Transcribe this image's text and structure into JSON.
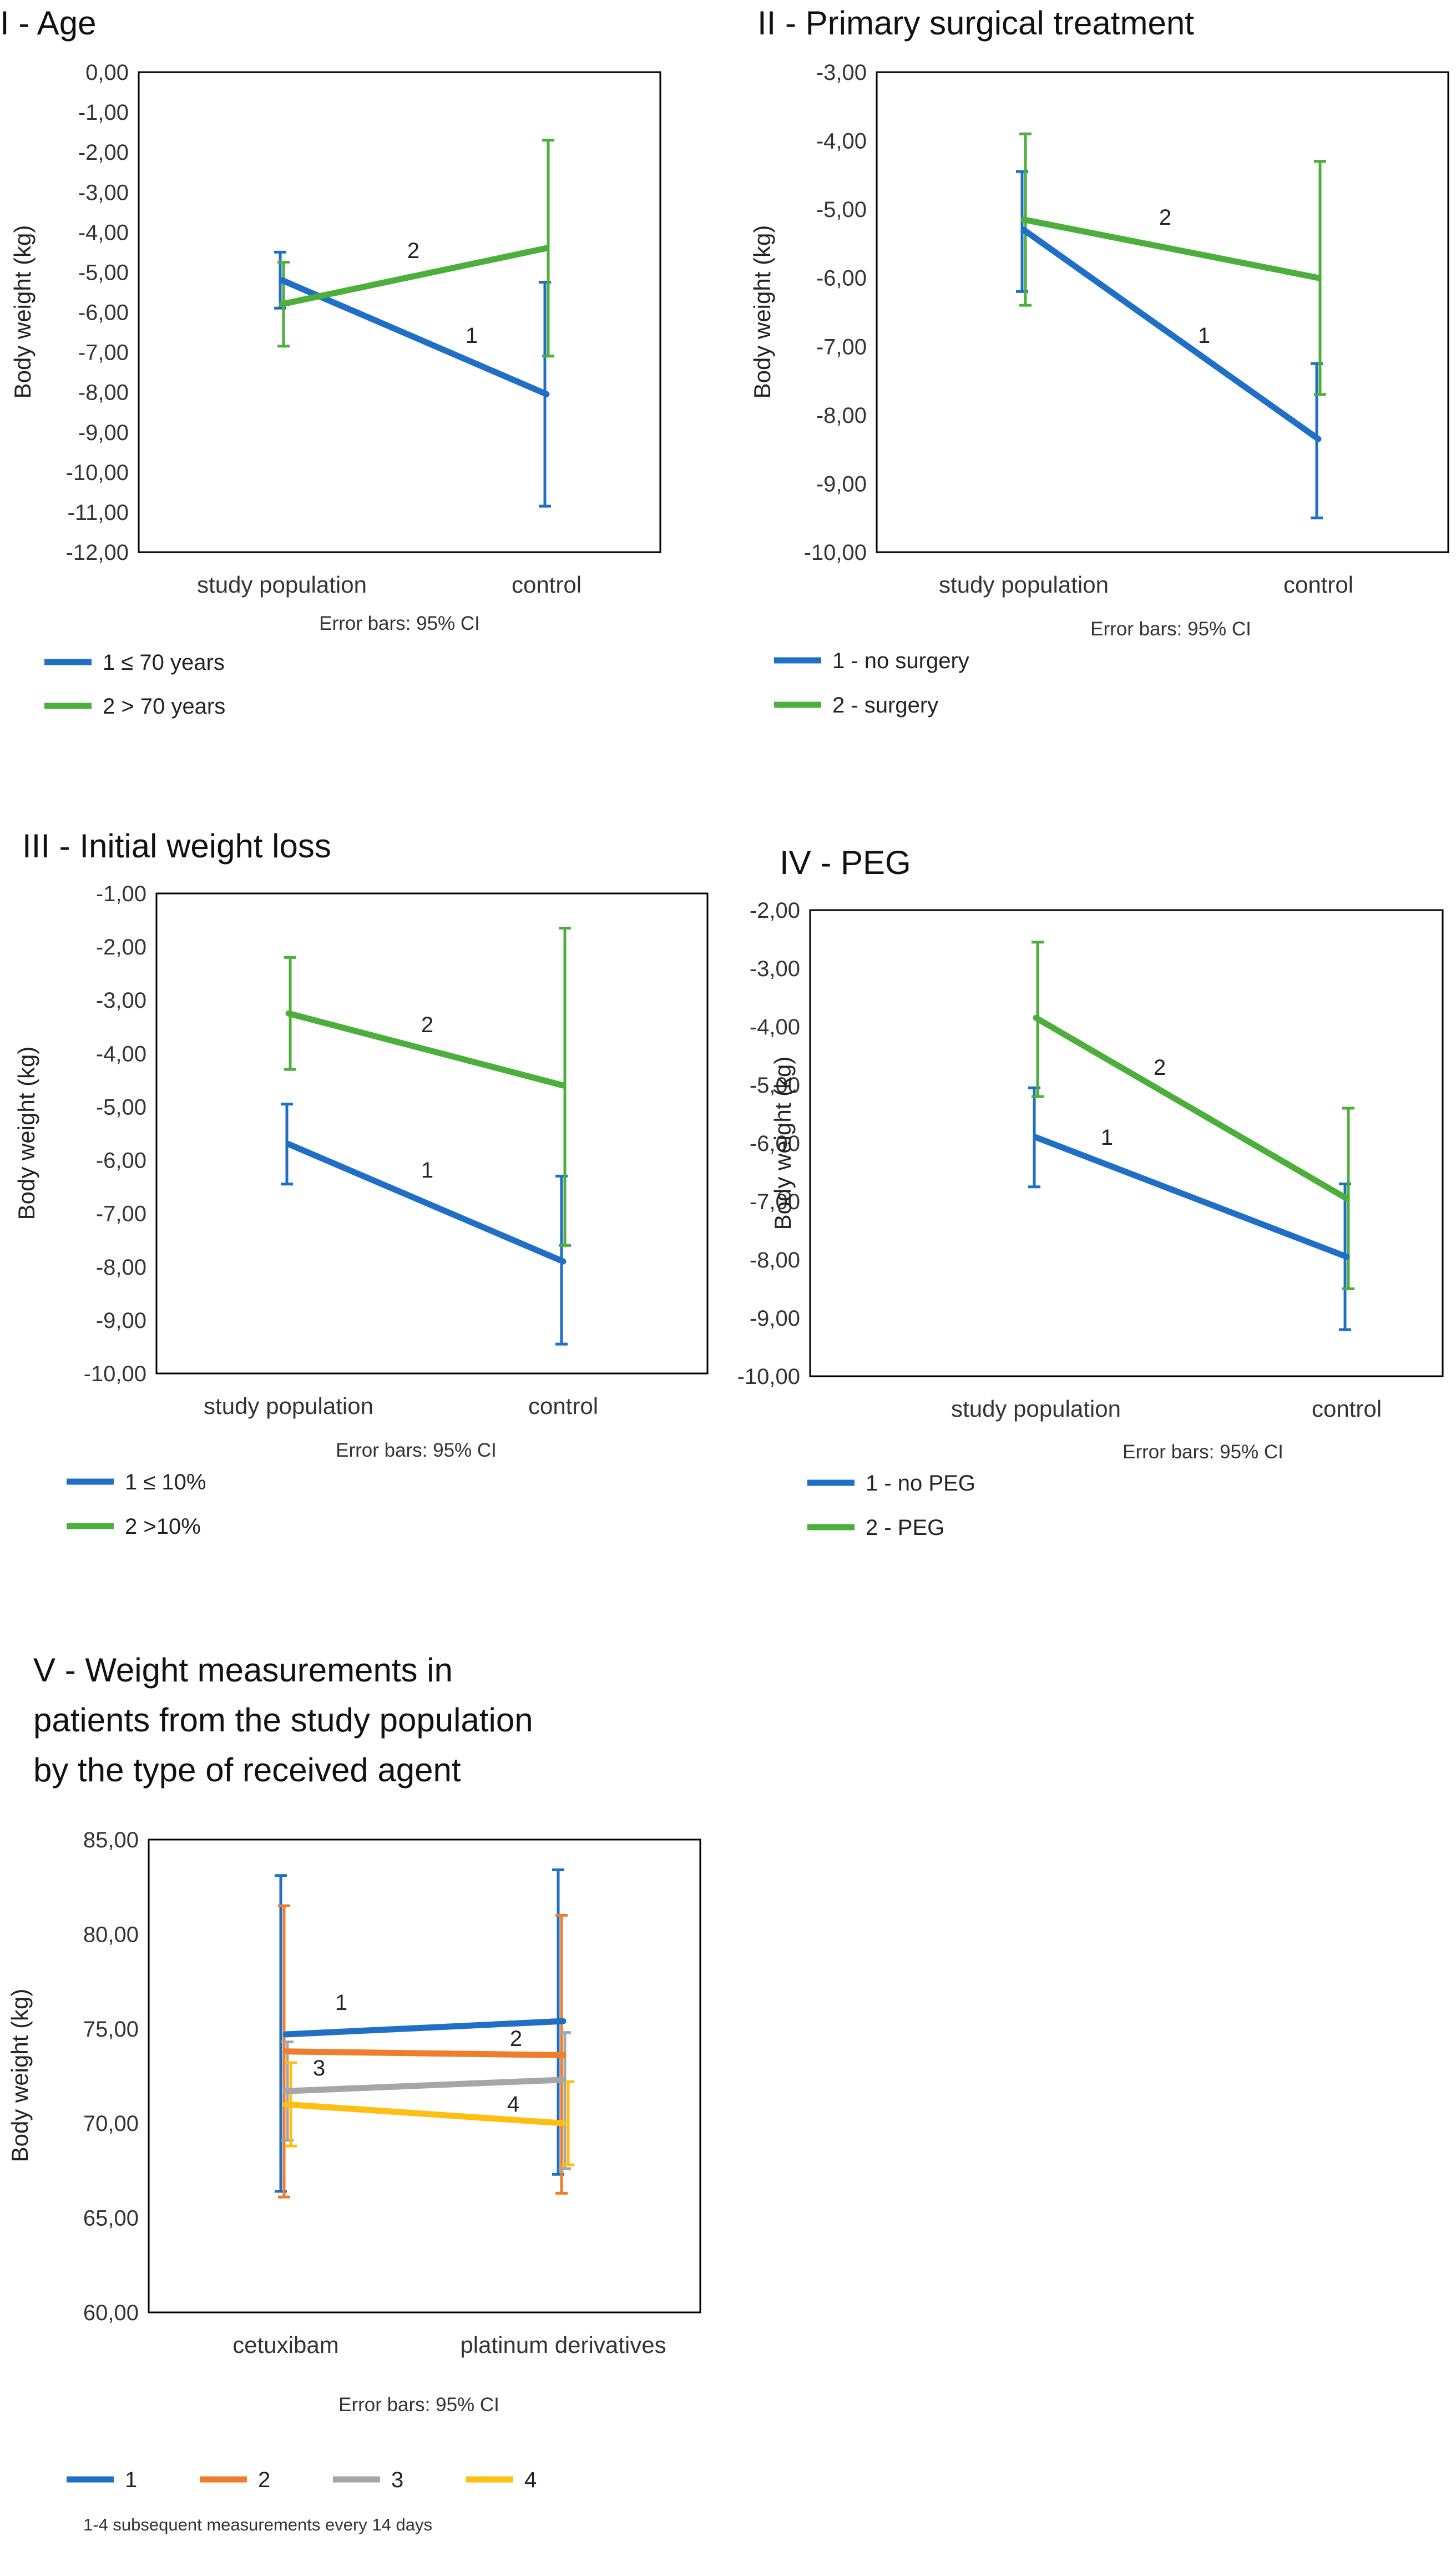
{
  "error_bar_note": "Error bars: 95% CI",
  "y_axis_label": "Body weight (kg)",
  "colors": {
    "s1": "#1f6fc6",
    "s2": "#4caf3c",
    "s2_orange": "#ef7d2c",
    "s3_gray": "#a6a6a6",
    "s4_yellow": "#fdbf12"
  },
  "chart_data": [
    {
      "id": "p1",
      "type": "line",
      "title": "I - Age",
      "ylabel": "Body weight (kg)",
      "note": "Error bars: 95% CI",
      "categories": [
        "study population",
        "control"
      ],
      "ylim": [
        -12,
        0
      ],
      "yticks": [
        "0,00",
        "-1,00",
        "-2,00",
        "-3,00",
        "-4,00",
        "-5,00",
        "-6,00",
        "-7,00",
        "-8,00",
        "-9,00",
        "-10,00",
        "-11,00",
        "-12,00"
      ],
      "series": [
        {
          "name": "1 ≤ 70 years",
          "marker": "1",
          "color": "#1f6fc6",
          "values": [
            -5.2,
            -8.05
          ],
          "lower": [
            -5.9,
            -10.85
          ],
          "upper": [
            -4.5,
            -5.25
          ]
        },
        {
          "name": "2 > 70 years",
          "marker": "2",
          "color": "#4caf3c",
          "values": [
            -5.8,
            -4.4
          ],
          "lower": [
            -6.85,
            -7.1
          ],
          "upper": [
            -4.75,
            -1.7
          ]
        }
      ]
    },
    {
      "id": "p2",
      "type": "line",
      "title": "II - Primary surgical treatment",
      "ylabel": "Body weight (kg)",
      "note": "Error bars: 95% CI",
      "categories": [
        "study population",
        "control"
      ],
      "ylim": [
        -10,
        -3
      ],
      "yticks": [
        "-3,00",
        "-4,00",
        "-5,00",
        "-6,00",
        "-7,00",
        "-8,00",
        "-9,00",
        "-10,00"
      ],
      "series": [
        {
          "name": "1 - no surgery",
          "marker": "1",
          "color": "#1f6fc6",
          "values": [
            -5.3,
            -8.35
          ],
          "lower": [
            -6.2,
            -9.5
          ],
          "upper": [
            -4.45,
            -7.25
          ]
        },
        {
          "name": "2 - surgery",
          "marker": "2",
          "color": "#4caf3c",
          "values": [
            -5.15,
            -6.0
          ],
          "lower": [
            -6.4,
            -7.7
          ],
          "upper": [
            -3.9,
            -4.3
          ]
        }
      ]
    },
    {
      "id": "p3",
      "type": "line",
      "title": "III - Initial weight loss",
      "ylabel": "Body weight (kg)",
      "note": "Error bars: 95% CI",
      "categories": [
        "study population",
        "control"
      ],
      "ylim": [
        -10,
        -1
      ],
      "yticks": [
        "-1,00",
        "-2,00",
        "-3,00",
        "-4,00",
        "-5,00",
        "-6,00",
        "-7,00",
        "-8,00",
        "-9,00",
        "-10,00"
      ],
      "series": [
        {
          "name": "1 ≤ 10%",
          "marker": "1",
          "color": "#1f6fc6",
          "values": [
            -5.7,
            -7.9
          ],
          "lower": [
            -6.45,
            -9.45
          ],
          "upper": [
            -4.95,
            -6.3
          ]
        },
        {
          "name": "2 >10%",
          "marker": "2",
          "color": "#4caf3c",
          "values": [
            -3.25,
            -4.6
          ],
          "lower": [
            -4.3,
            -7.6
          ],
          "upper": [
            -2.2,
            -1.65
          ]
        }
      ]
    },
    {
      "id": "p4",
      "type": "line",
      "title": "IV - PEG",
      "ylabel": "Body weight (kg)",
      "note": "Error bars: 95% CI",
      "categories": [
        "study population",
        "control"
      ],
      "ylim": [
        -10,
        -2
      ],
      "yticks": [
        "-2,00",
        "-3,00",
        "-4,00",
        "-5,00",
        "-6,00",
        "-7,00",
        "-8,00",
        "-9,00",
        "-10,00"
      ],
      "series": [
        {
          "name": "1 - no PEG",
          "marker": "1",
          "color": "#1f6fc6",
          "values": [
            -5.9,
            -7.95
          ],
          "lower": [
            -6.75,
            -9.2
          ],
          "upper": [
            -5.05,
            -6.7
          ]
        },
        {
          "name": "2 - PEG",
          "marker": "2",
          "color": "#4caf3c",
          "values": [
            -3.85,
            -6.95
          ],
          "lower": [
            -5.2,
            -8.5
          ],
          "upper": [
            -2.55,
            -5.4
          ]
        }
      ]
    },
    {
      "id": "p5",
      "type": "line",
      "title_lines": [
        "V - Weight measurements in",
        "patients from the study population",
        "by the type of received agent"
      ],
      "ylabel": "Body weight (kg)",
      "note": "Error bars: 95% CI",
      "footnote": "1-4 subsequent measurements every 14 days",
      "categories": [
        "cetuxibam",
        "platinum derivatives"
      ],
      "ylim": [
        60,
        85
      ],
      "yticks": [
        "85,00",
        "80,00",
        "75,00",
        "70,00",
        "65,00",
        "60,00"
      ],
      "series": [
        {
          "name": "1",
          "marker": "1",
          "color": "#1f6fc6",
          "values": [
            74.7,
            75.4
          ],
          "lower": [
            66.4,
            67.3
          ],
          "upper": [
            83.1,
            83.4
          ]
        },
        {
          "name": "2",
          "marker": "2",
          "color": "#ef7d2c",
          "values": [
            73.8,
            73.6
          ],
          "lower": [
            66.1,
            66.3
          ],
          "upper": [
            81.5,
            81.0
          ]
        },
        {
          "name": "3",
          "marker": "3",
          "color": "#a6a6a6",
          "values": [
            71.7,
            72.3
          ],
          "lower": [
            69.1,
            67.6
          ],
          "upper": [
            74.3,
            74.8
          ]
        },
        {
          "name": "4",
          "marker": "4",
          "color": "#fdbf12",
          "values": [
            71.0,
            70.0
          ],
          "lower": [
            68.8,
            67.8
          ],
          "upper": [
            73.2,
            72.2
          ]
        }
      ]
    }
  ]
}
